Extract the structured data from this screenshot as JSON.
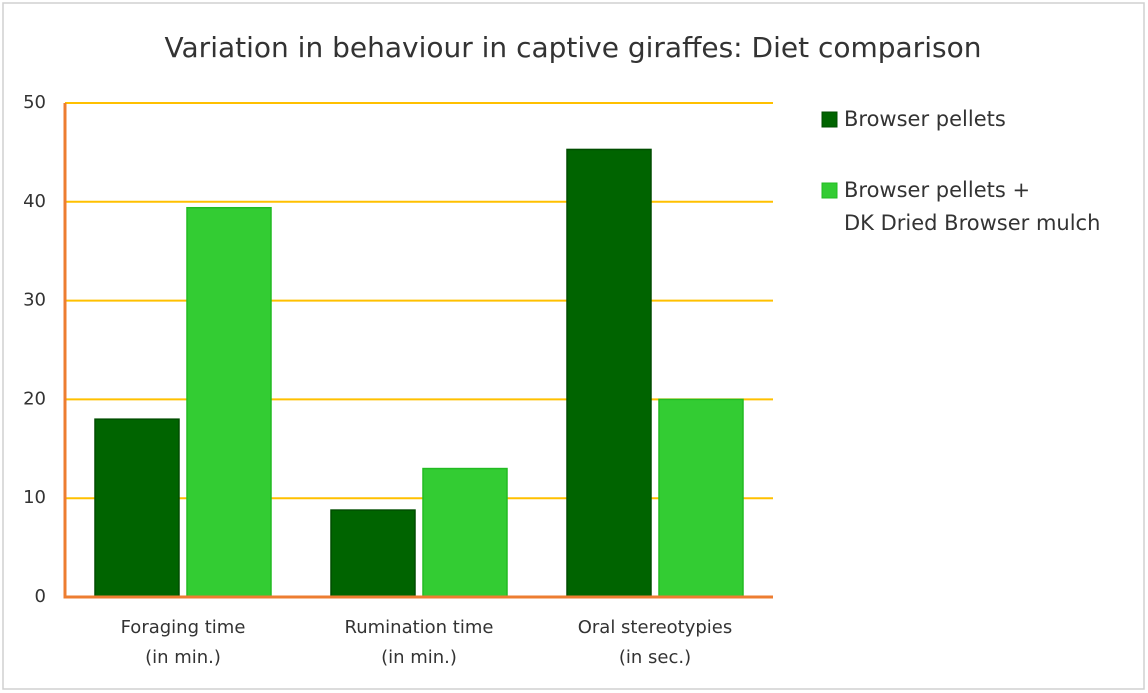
{
  "chart_data": {
    "type": "bar",
    "title": "Variation in behaviour in captive giraffes: Diet comparison",
    "categories": [
      "Foraging time\n(in min.)",
      "Rumination time\n(in min.)",
      "Oral stereotypies\n(in sec.)"
    ],
    "series": [
      {
        "name": "Browser pellets",
        "color": "#006400",
        "values": [
          18,
          8.8,
          45.3
        ]
      },
      {
        "name": "Browser pellets +\nDK Dried Browser mulch",
        "color": "#33cc33",
        "values": [
          39.4,
          13,
          20
        ]
      }
    ],
    "ylim": [
      0,
      50
    ],
    "yticks": [
      0,
      10,
      20,
      30,
      40,
      50
    ],
    "grid": true,
    "legend": "right"
  }
}
